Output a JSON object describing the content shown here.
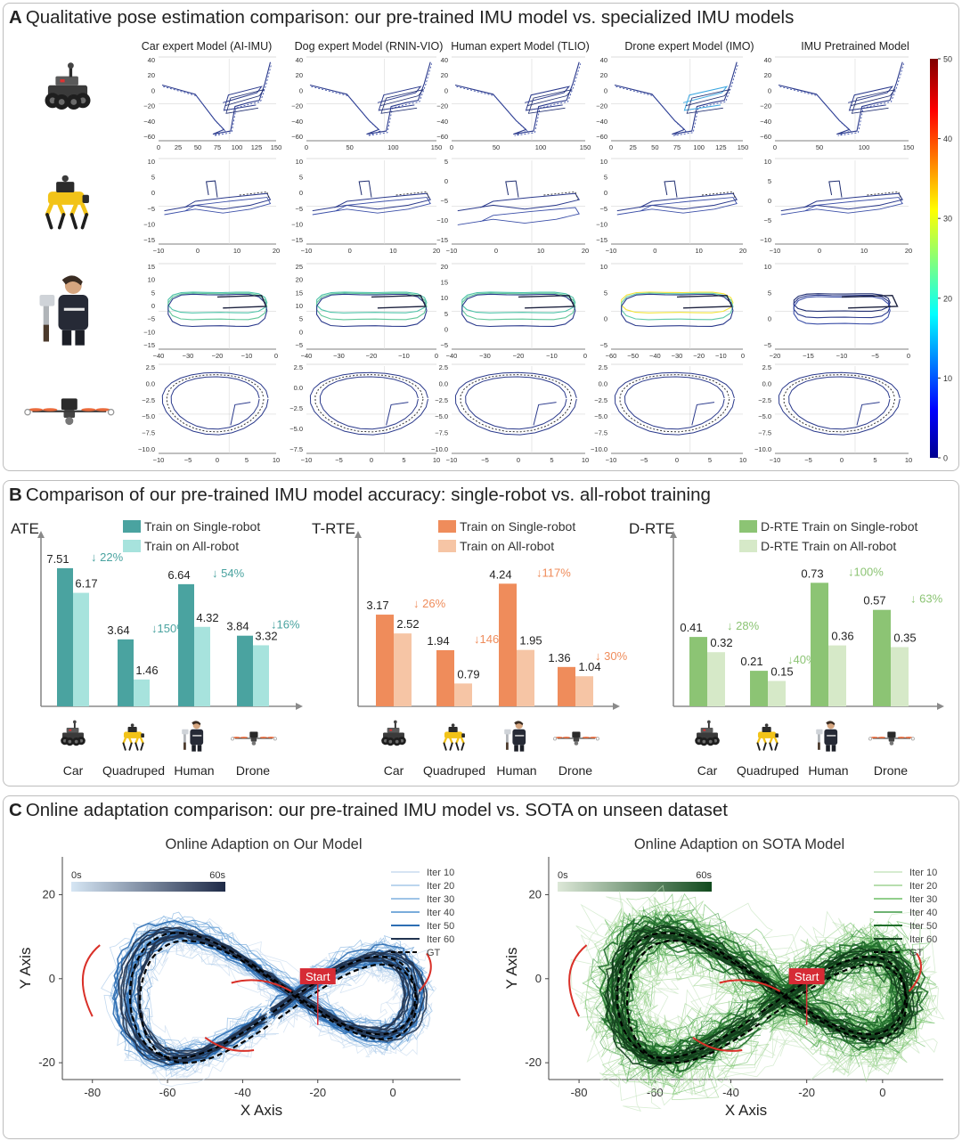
{
  "panel_a": {
    "letter": "A",
    "title": "Qualitative pose estimation comparison: our pre-trained IMU model vs. specialized IMU models",
    "columns": [
      "Car expert Model (AI-IMU)",
      "Dog expert Model (RNIN-VIO)",
      "Human expert Model (TLIO)",
      "Drone expert Model (IMO)",
      "IMU Pretrained Model"
    ],
    "robots": [
      "car-robot",
      "quadruped-robot",
      "human-rig",
      "drone-robot"
    ],
    "colorbar_ticks": [
      "50",
      "40",
      "30",
      "20",
      "10",
      "0"
    ],
    "rows": [
      {
        "name": "car",
        "plots": [
          {
            "x": [
              "0",
              "25",
              "50",
              "75",
              "100",
              "125",
              "150"
            ],
            "y": [
              "40",
              "20",
              "0",
              "−20",
              "−40",
              "−60"
            ]
          },
          {
            "x": [
              "0",
              "50",
              "100",
              "150"
            ],
            "y": [
              "40",
              "20",
              "0",
              "−20",
              "−40",
              "−60"
            ]
          },
          {
            "x": [
              "0",
              "50",
              "100",
              "150"
            ],
            "y": [
              "40",
              "20",
              "0",
              "−20",
              "−40",
              "−60"
            ]
          },
          {
            "x": [
              "0",
              "25",
              "50",
              "75",
              "100",
              "125",
              "150"
            ],
            "y": [
              "40",
              "20",
              "0",
              "−20",
              "−40",
              "−60"
            ]
          },
          {
            "x": [
              "0",
              "50",
              "100",
              "150"
            ],
            "y": [
              "40",
              "20",
              "0",
              "−20",
              "−40",
              "−60"
            ]
          }
        ]
      },
      {
        "name": "quadruped",
        "plots": [
          {
            "x": [
              "−10",
              "0",
              "10",
              "20"
            ],
            "y": [
              "10",
              "5",
              "0",
              "−5",
              "−10",
              "−15"
            ]
          },
          {
            "x": [
              "−10",
              "0",
              "10",
              "20"
            ],
            "y": [
              "10",
              "5",
              "0",
              "−5",
              "−10",
              "−15"
            ]
          },
          {
            "x": [
              "−10",
              "0",
              "10",
              "20"
            ],
            "y": [
              "5",
              "0",
              "−5",
              "−10",
              "−15"
            ]
          },
          {
            "x": [
              "−10",
              "0",
              "10",
              "20"
            ],
            "y": [
              "10",
              "5",
              "0",
              "−5",
              "−10",
              "−15"
            ]
          },
          {
            "x": [
              "−10",
              "0",
              "10",
              "20"
            ],
            "y": [
              "10",
              "5",
              "0",
              "−5",
              "−10"
            ]
          }
        ]
      },
      {
        "name": "human",
        "plots": [
          {
            "x": [
              "−40",
              "−30",
              "−20",
              "−10",
              "0"
            ],
            "y": [
              "15",
              "10",
              "5",
              "0",
              "−5",
              "−10",
              "−15"
            ]
          },
          {
            "x": [
              "−40",
              "−30",
              "−20",
              "−10",
              "0"
            ],
            "y": [
              "25",
              "20",
              "15",
              "10",
              "5",
              "0",
              "−5"
            ]
          },
          {
            "x": [
              "−40",
              "−30",
              "−20",
              "−10",
              "0"
            ],
            "y": [
              "20",
              "15",
              "10",
              "5",
              "0",
              "−5"
            ]
          },
          {
            "x": [
              "−60",
              "−50",
              "−40",
              "−30",
              "−20",
              "−10",
              "0"
            ],
            "y": [
              "10",
              "5",
              "0",
              "−5"
            ]
          },
          {
            "x": [
              "−20",
              "−15",
              "−10",
              "−5",
              "0"
            ],
            "y": [
              "10",
              "5",
              "0",
              "−5"
            ]
          }
        ]
      },
      {
        "name": "drone",
        "plots": [
          {
            "x": [
              "−10",
              "−5",
              "0",
              "5",
              "10"
            ],
            "y": [
              "2.5",
              "0.0",
              "−2.5",
              "−5.0",
              "−7.5",
              "−10.0"
            ]
          },
          {
            "x": [
              "−10",
              "−5",
              "0",
              "5",
              "10"
            ],
            "y": [
              "2.5",
              "0.0",
              "−2.5",
              "−5.0",
              "−7.5"
            ]
          },
          {
            "x": [
              "−10",
              "−5",
              "0",
              "5",
              "10"
            ],
            "y": [
              "2.5",
              "0.0",
              "−2.5",
              "−5.0",
              "−7.5",
              "−10.0"
            ]
          },
          {
            "x": [
              "−10",
              "−5",
              "0",
              "5",
              "10"
            ],
            "y": [
              "2.5",
              "0.0",
              "−2.5",
              "−5.0",
              "−7.5",
              "−10.0"
            ]
          },
          {
            "x": [
              "−10",
              "−5",
              "0",
              "5",
              "10"
            ],
            "y": [
              "2.5",
              "0.0",
              "−2.5",
              "−5.0",
              "−7.5",
              "−10.0"
            ]
          }
        ]
      }
    ]
  },
  "panel_b": {
    "letter": "B",
    "title": "Comparison of our pre-trained IMU model accuracy: single-robot vs. all-robot training",
    "categories": [
      "Car",
      "Quadruped",
      "Human",
      "Drone"
    ],
    "robot_icons": [
      "car-robot",
      "quadruped-robot",
      "human-rig",
      "drone-robot"
    ]
  },
  "panel_c": {
    "letter": "C",
    "title": "Online adaptation comparison: our pre-trained IMU model vs. SOTA on unseen dataset",
    "start_label": "Start",
    "gradient_start": "0s",
    "gradient_end": "60s"
  },
  "chart_data": [
    {
      "type": "bar",
      "id": "ate",
      "title": "ATE",
      "categories": [
        "Car",
        "Quadruped",
        "Human",
        "Drone"
      ],
      "ylim": [
        0,
        9.2
      ],
      "series": [
        {
          "name": "Train on Single-robot",
          "values": [
            7.51,
            3.64,
            6.64,
            3.84
          ],
          "labels": [
            "7.51",
            "3.64",
            "6.64",
            "3.84"
          ],
          "color": "#4aa3a0"
        },
        {
          "name": "Train on All-robot",
          "values": [
            6.17,
            1.46,
            4.32,
            3.32
          ],
          "labels": [
            "6.17",
            "1.46",
            "4.32",
            "3.32"
          ],
          "color": "#a7e3dd"
        }
      ],
      "improvements": [
        "↓ 22%",
        "↓150%",
        "↓ 54%",
        "↓16%"
      ],
      "improvement_color": "#4aa3a0"
    },
    {
      "type": "bar",
      "id": "trte",
      "title": "T-RTE",
      "categories": [
        "Car",
        "Quadruped",
        "Human",
        "Drone"
      ],
      "ylim": [
        0,
        5.85
      ],
      "series": [
        {
          "name": "Train on Single-robot",
          "values": [
            3.17,
            1.94,
            4.24,
            1.36
          ],
          "labels": [
            "3.17",
            "1.94",
            "4.24",
            "1.36"
          ],
          "color": "#ef8c5b"
        },
        {
          "name": "Train on All-robot",
          "values": [
            2.52,
            0.79,
            1.95,
            1.04
          ],
          "labels": [
            "2.52",
            "0.79",
            "1.95",
            "1.04"
          ],
          "color": "#f6c5a5"
        }
      ],
      "improvements": [
        "↓ 26%",
        "↓146%",
        "↓117%",
        "↓ 30%"
      ],
      "improvement_color": "#ef8c5b"
    },
    {
      "type": "bar",
      "id": "drte",
      "title": "D-RTE",
      "categories": [
        "Car",
        "Quadruped",
        "Human",
        "Drone"
      ],
      "ylim": [
        0,
        1.0
      ],
      "series": [
        {
          "name": "D-RTE Train on Single-robot",
          "values": [
            0.41,
            0.21,
            0.73,
            0.57
          ],
          "labels": [
            "0.41",
            "0.21",
            "0.73",
            "0.57"
          ],
          "color": "#8cc474"
        },
        {
          "name": "D-RTE Train on All-robot",
          "values": [
            0.32,
            0.15,
            0.36,
            0.35
          ],
          "labels": [
            "0.32",
            "0.15",
            "0.36",
            "0.35"
          ],
          "color": "#d6e9c8"
        }
      ],
      "improvements": [
        "↓ 28%",
        "↓40%",
        "↓100%",
        "↓ 63%"
      ],
      "improvement_color": "#8cc474"
    },
    {
      "type": "line",
      "id": "online_ours",
      "title": "Online Adaption on Our Model",
      "xlabel": "X Axis",
      "ylabel": "Y Axis",
      "xlim": [
        -88,
        18
      ],
      "ylim": [
        -24,
        29
      ],
      "xticks": [
        "-80",
        "-60",
        "-40",
        "-20",
        "0"
      ],
      "xtick_values": [
        -80,
        -60,
        -40,
        -20,
        0
      ],
      "yticks": [
        "20",
        "0",
        "-20"
      ],
      "ytick_values": [
        20,
        0,
        -20
      ],
      "series": [
        {
          "name": "Iter 10",
          "color": "#c9dcef"
        },
        {
          "name": "Iter 20",
          "color": "#a6c8e8"
        },
        {
          "name": "Iter 30",
          "color": "#7fb0df"
        },
        {
          "name": "Iter 40",
          "color": "#4f90cf"
        },
        {
          "name": "Iter 50",
          "color": "#2d6eb3"
        },
        {
          "name": "Iter 60",
          "color": "#21334f"
        },
        {
          "name": "GT",
          "color": "#000000",
          "dashed": true
        }
      ],
      "gradient": [
        "#d6e6f4",
        "#1e2a47"
      ]
    },
    {
      "type": "line",
      "id": "online_sota",
      "title": "Online Adaption on SOTA Model",
      "xlabel": "X Axis",
      "ylabel": "Y Axis",
      "xlim": [
        -88,
        16
      ],
      "ylim": [
        -24,
        29
      ],
      "xticks": [
        "-80",
        "-60",
        "-40",
        "-20",
        "0"
      ],
      "xtick_values": [
        -80,
        -60,
        -40,
        -20,
        0
      ],
      "yticks": [
        "20",
        "0",
        "-20"
      ],
      "ytick_values": [
        20,
        0,
        -20
      ],
      "series": [
        {
          "name": "Iter 10",
          "color": "#c8e6c0"
        },
        {
          "name": "Iter 20",
          "color": "#9fd493"
        },
        {
          "name": "Iter 30",
          "color": "#6fbf66"
        },
        {
          "name": "Iter 40",
          "color": "#3f9a45"
        },
        {
          "name": "Iter 50",
          "color": "#1f6d2a"
        },
        {
          "name": "Iter 60",
          "color": "#123f1c"
        },
        {
          "name": "GT",
          "color": "#000000",
          "dashed": true
        }
      ],
      "gradient": [
        "#dde8d8",
        "#114a1d"
      ]
    }
  ]
}
